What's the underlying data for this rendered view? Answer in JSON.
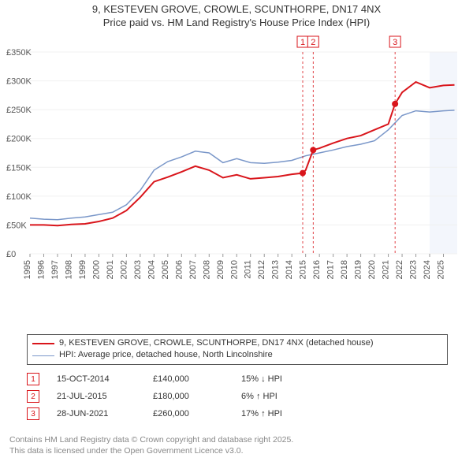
{
  "title_line1": "9, KESTEVEN GROVE, CROWLE, SCUNTHORPE, DN17 4NX",
  "title_line2": "Price paid vs. HM Land Registry's House Price Index (HPI)",
  "chart": {
    "type": "line",
    "background_color": "#ffffff",
    "grid_color": "#f0f0f0",
    "x_min": 1995,
    "x_max": 2026,
    "y_min": 0,
    "y_max": 350000,
    "y_ticks": [
      0,
      50000,
      100000,
      150000,
      200000,
      250000,
      300000,
      350000
    ],
    "y_tick_labels": [
      "£0",
      "£50K",
      "£100K",
      "£150K",
      "£200K",
      "£250K",
      "£300K",
      "£350K"
    ],
    "x_ticks": [
      1995,
      1996,
      1997,
      1998,
      1999,
      2000,
      2001,
      2002,
      2003,
      2004,
      2005,
      2006,
      2007,
      2008,
      2009,
      2010,
      2011,
      2012,
      2013,
      2014,
      2015,
      2016,
      2017,
      2018,
      2019,
      2020,
      2021,
      2022,
      2023,
      2024,
      2025
    ],
    "shade_from": 2024,
    "shade_to": 2026,
    "series_red": {
      "label": "9, KESTEVEN GROVE, CROWLE, SCUNTHORPE, DN17 4NX (detached house)",
      "color": "#d9151b",
      "width": 2,
      "points": [
        [
          1995,
          50000
        ],
        [
          1996,
          50000
        ],
        [
          1997,
          49000
        ],
        [
          1998,
          51000
        ],
        [
          1999,
          52000
        ],
        [
          2000,
          56000
        ],
        [
          2001,
          62000
        ],
        [
          2002,
          75000
        ],
        [
          2003,
          98000
        ],
        [
          2004,
          125000
        ],
        [
          2005,
          133000
        ],
        [
          2006,
          142000
        ],
        [
          2007,
          152000
        ],
        [
          2008,
          145000
        ],
        [
          2009,
          132000
        ],
        [
          2010,
          137000
        ],
        [
          2011,
          130000
        ],
        [
          2012,
          132000
        ],
        [
          2013,
          134000
        ],
        [
          2014,
          138000
        ],
        [
          2014.79,
          140000
        ],
        [
          2015,
          145000
        ],
        [
          2015.55,
          180000
        ],
        [
          2016,
          183000
        ],
        [
          2017,
          192000
        ],
        [
          2018,
          200000
        ],
        [
          2019,
          205000
        ],
        [
          2020,
          215000
        ],
        [
          2021,
          225000
        ],
        [
          2021.49,
          260000
        ],
        [
          2022,
          280000
        ],
        [
          2023,
          298000
        ],
        [
          2024,
          288000
        ],
        [
          2025,
          292000
        ],
        [
          2025.8,
          293000
        ]
      ]
    },
    "series_blue": {
      "label": "HPI: Average price, detached house, North Lincolnshire",
      "color": "#7a97c9",
      "width": 1.5,
      "points": [
        [
          1995,
          62000
        ],
        [
          1996,
          60000
        ],
        [
          1997,
          59000
        ],
        [
          1998,
          62000
        ],
        [
          1999,
          64000
        ],
        [
          2000,
          68000
        ],
        [
          2001,
          72000
        ],
        [
          2002,
          85000
        ],
        [
          2003,
          110000
        ],
        [
          2004,
          145000
        ],
        [
          2005,
          160000
        ],
        [
          2006,
          168000
        ],
        [
          2007,
          178000
        ],
        [
          2008,
          175000
        ],
        [
          2009,
          158000
        ],
        [
          2010,
          165000
        ],
        [
          2011,
          158000
        ],
        [
          2012,
          157000
        ],
        [
          2013,
          159000
        ],
        [
          2014,
          162000
        ],
        [
          2015,
          170000
        ],
        [
          2016,
          175000
        ],
        [
          2017,
          180000
        ],
        [
          2018,
          186000
        ],
        [
          2019,
          190000
        ],
        [
          2020,
          196000
        ],
        [
          2021,
          215000
        ],
        [
          2022,
          240000
        ],
        [
          2023,
          248000
        ],
        [
          2024,
          246000
        ],
        [
          2025,
          248000
        ],
        [
          2025.8,
          249000
        ]
      ]
    },
    "events": [
      {
        "num": "1",
        "year": 2014.79,
        "date": "15-OCT-2014",
        "price": "£140,000",
        "delta": "15%",
        "dir": "down"
      },
      {
        "num": "2",
        "year": 2015.55,
        "date": "21-JUL-2015",
        "price": "£180,000",
        "delta": "6%",
        "dir": "up"
      },
      {
        "num": "3",
        "year": 2021.49,
        "date": "28-JUN-2021",
        "price": "£260,000",
        "delta": "17%",
        "dir": "up"
      }
    ]
  },
  "hpi_label": "HPI",
  "legend_swatch_red": "#d9151b",
  "legend_swatch_blue": "#7a97c9",
  "credits_line1": "Contains HM Land Registry data © Crown copyright and database right 2025.",
  "credits_line2": "This data is licensed under the Open Government Licence v3.0."
}
